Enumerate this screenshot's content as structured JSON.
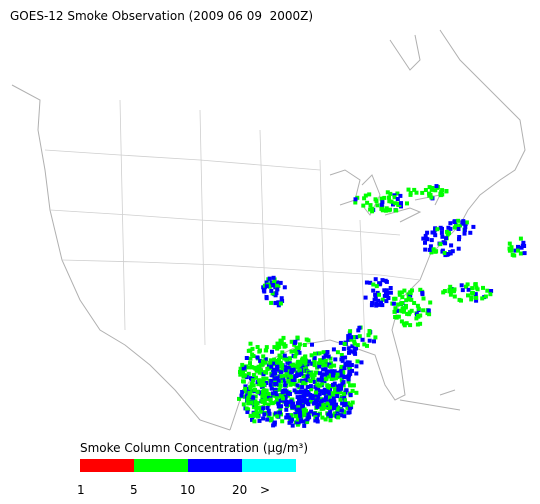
{
  "title": "GOES-12 Smoke Observation (2009 06 09  2000Z)",
  "legend": {
    "title": "Smoke Column Concentration (µg/m³)",
    "colors": [
      "#ff0000",
      "#00ff00",
      "#0000ff",
      "#00ffff"
    ],
    "labels": [
      "1",
      "5",
      "10",
      "20",
      ">"
    ]
  }
}
